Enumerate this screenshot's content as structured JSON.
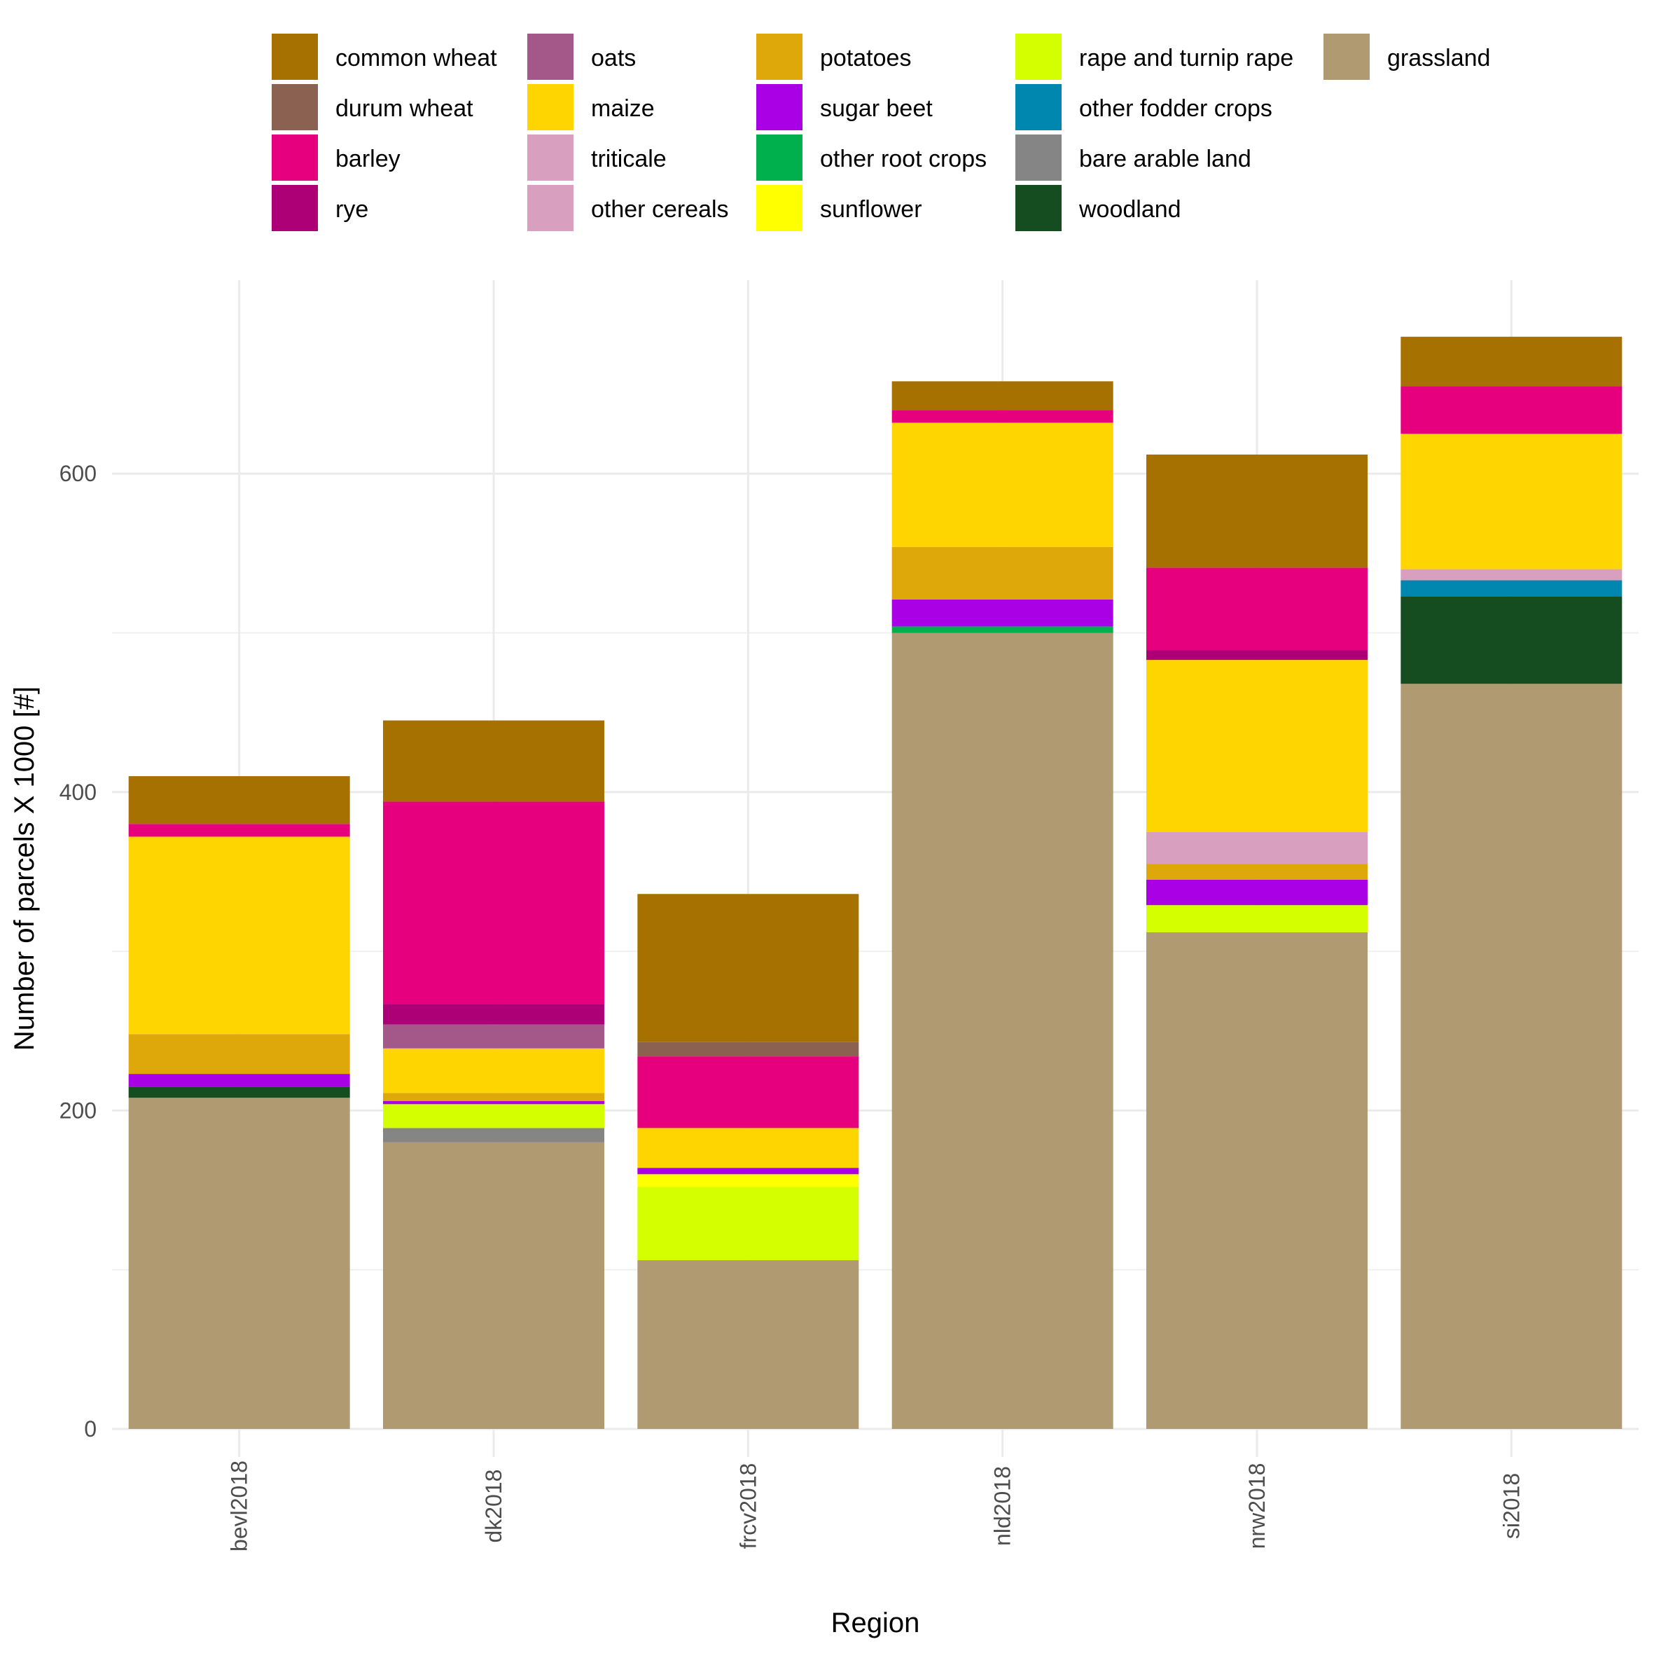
{
  "chart_data": {
    "type": "bar",
    "stacked": true,
    "title": "",
    "xlabel": "Region",
    "ylabel": "Number of parcels  X 1000 [#]",
    "ylim": [
      -12,
      700
    ],
    "y_ticks": [
      0,
      200,
      400,
      600
    ],
    "grid": true,
    "legend_position": "top",
    "categories": [
      "bevl2018",
      "dk2018",
      "frcv2018",
      "nld2018",
      "nrw2018",
      "si2018"
    ],
    "series": [
      {
        "name": "grassland",
        "color": "#B09A72",
        "values": [
          208,
          180,
          106,
          500,
          312,
          468
        ]
      },
      {
        "name": "woodland",
        "color": "#154D20",
        "values": [
          7,
          0,
          0,
          0,
          0,
          55
        ]
      },
      {
        "name": "bare arable land",
        "color": "#858585",
        "values": [
          0,
          9,
          0,
          0,
          0,
          0
        ]
      },
      {
        "name": "other fodder crops",
        "color": "#0087AF",
        "values": [
          0,
          0,
          0,
          0,
          0,
          10
        ]
      },
      {
        "name": "rape and turnip rape",
        "color": "#D4FF00",
        "values": [
          0,
          15,
          46,
          0,
          17,
          0
        ]
      },
      {
        "name": "sunflower",
        "color": "#FFFF00",
        "values": [
          0,
          0,
          8,
          0,
          0,
          0
        ]
      },
      {
        "name": "other root crops",
        "color": "#00B04D",
        "values": [
          0,
          0,
          0,
          4,
          0,
          0
        ]
      },
      {
        "name": "sugar beet",
        "color": "#AA00E6",
        "values": [
          8,
          2,
          4,
          17,
          16,
          0
        ]
      },
      {
        "name": "potatoes",
        "color": "#DFA80A",
        "values": [
          25,
          5,
          0,
          33,
          10,
          0
        ]
      },
      {
        "name": "other cereals",
        "color": "#D99FBF",
        "values": [
          0,
          0,
          0,
          0,
          0,
          0
        ]
      },
      {
        "name": "triticale",
        "color": "#D99FBF",
        "values": [
          0,
          0,
          0,
          0,
          20,
          7
        ]
      },
      {
        "name": "maize",
        "color": "#FFD500",
        "values": [
          124,
          28,
          25,
          78,
          108,
          85
        ]
      },
      {
        "name": "oats",
        "color": "#A4588A",
        "values": [
          0,
          15,
          0,
          0,
          0,
          0
        ]
      },
      {
        "name": "rye",
        "color": "#AD0077",
        "values": [
          0,
          13,
          0,
          0,
          6,
          0
        ]
      },
      {
        "name": "barley",
        "color": "#E6007E",
        "values": [
          8,
          127,
          45,
          8,
          52,
          30
        ]
      },
      {
        "name": "durum wheat",
        "color": "#8B6152",
        "values": [
          0,
          0,
          9,
          0,
          0,
          0
        ]
      },
      {
        "name": "common wheat",
        "color": "#A67100",
        "values": [
          30,
          51,
          93,
          18,
          71,
          31
        ]
      }
    ],
    "legend_order": [
      "common wheat",
      "durum wheat",
      "barley",
      "rye",
      "oats",
      "maize",
      "triticale",
      "other cereals",
      "potatoes",
      "sugar beet",
      "other root crops",
      "sunflower",
      "rape and turnip rape",
      "other fodder crops",
      "bare arable land",
      "woodland",
      "grassland"
    ]
  }
}
